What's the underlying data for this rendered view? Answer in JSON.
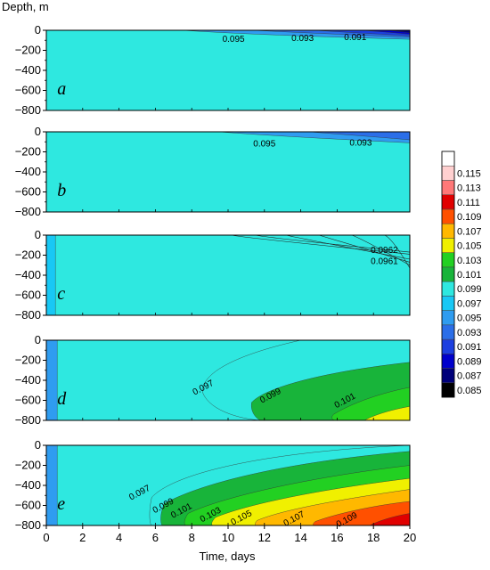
{
  "chart_data": {
    "type": "contour",
    "ylabel": "Depth, m",
    "xlabel": "Time, days",
    "xlim": [
      0,
      20
    ],
    "ylim": [
      -800,
      0
    ],
    "x_ticks": [
      0,
      2,
      4,
      6,
      8,
      10,
      12,
      14,
      16,
      18,
      20
    ],
    "y_ticks": [
      0,
      -200,
      -400,
      -600,
      -800
    ],
    "colorbar": {
      "levels": [
        0.085,
        0.087,
        0.089,
        0.091,
        0.093,
        0.095,
        0.097,
        0.099,
        0.101,
        0.103,
        0.105,
        0.107,
        0.109,
        0.111,
        0.113,
        0.115
      ],
      "level_labels": [
        "0.085",
        "0.087",
        "0.089",
        "0.091",
        "0.093",
        "0.095",
        "0.097",
        "0.099",
        "0.101",
        "0.103",
        "0.105",
        "0.107",
        "0.109",
        "0.111",
        "0.113",
        "0.115"
      ],
      "colors": [
        "#000000",
        "#00007a",
        "#0000cc",
        "#1c3fe0",
        "#2b6ee8",
        "#2f9cf0",
        "#18c8f5",
        "#2ee8e0",
        "#18b43a",
        "#22d022",
        "#f0f000",
        "#ffb800",
        "#ff5000",
        "#e00000",
        "#ff7878",
        "#ffd0d0",
        "#ffffff"
      ]
    },
    "panels": [
      {
        "label": "a",
        "background_level": 0.097,
        "contour_labels": [
          {
            "text": "0.095",
            "x": 10.3,
            "y": -90
          },
          {
            "text": "0.093",
            "x": 14.1,
            "y": -80
          },
          {
            "text": "0.091",
            "x": 17.0,
            "y": -70
          }
        ]
      },
      {
        "label": "b",
        "background_level": 0.097,
        "contour_labels": [
          {
            "text": "0.095",
            "x": 12.0,
            "y": -120
          },
          {
            "text": "0.093",
            "x": 17.3,
            "y": -110
          }
        ]
      },
      {
        "label": "c",
        "background_level": 0.097,
        "contour_labels": [
          {
            "text": "0.0962",
            "x": 18.6,
            "y": -150
          },
          {
            "text": "0.0961",
            "x": 18.6,
            "y": -260
          }
        ]
      },
      {
        "label": "d",
        "background_level": 0.097,
        "contour_labels": [
          {
            "text": "0.097",
            "x": 8.7,
            "y": -470
          },
          {
            "text": "0.099",
            "x": 12.4,
            "y": -550
          },
          {
            "text": "0.101",
            "x": 16.5,
            "y": -600
          }
        ]
      },
      {
        "label": "e",
        "background_level": 0.097,
        "contour_labels": [
          {
            "text": "0.097",
            "x": 5.2,
            "y": -470
          },
          {
            "text": "0.099",
            "x": 6.5,
            "y": -600
          },
          {
            "text": "0.101",
            "x": 7.5,
            "y": -650
          },
          {
            "text": "0.103",
            "x": 9.1,
            "y": -690
          },
          {
            "text": "0.105",
            "x": 10.8,
            "y": -720
          },
          {
            "text": "0.107",
            "x": 13.7,
            "y": -730
          },
          {
            "text": "0.109",
            "x": 16.6,
            "y": -740
          }
        ]
      }
    ]
  }
}
